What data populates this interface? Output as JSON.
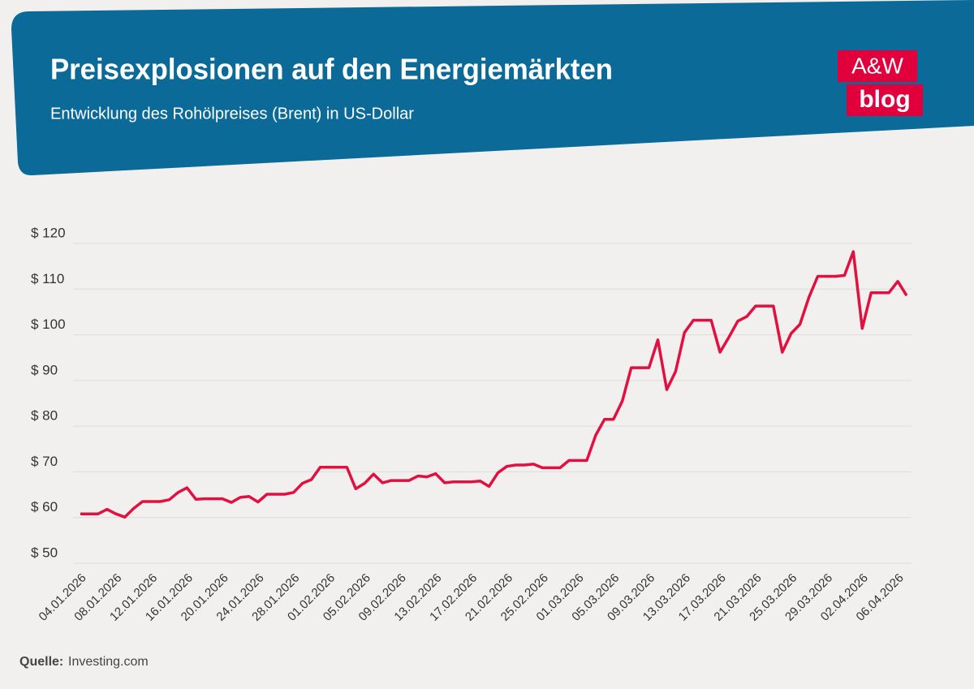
{
  "header": {
    "title": "Preisexplosionen auf den Energiemärkten",
    "subtitle": "Entwicklung des Rohölpreises (Brent) in US-Dollar",
    "logo_top": "A&W",
    "logo_bottom": "blog"
  },
  "source": {
    "label": "Quelle:",
    "text": "Investing.com"
  },
  "chart_data": {
    "type": "line",
    "color": "#e1103f",
    "grid": true,
    "categories": [
      "04.01.2026",
      null,
      null,
      null,
      "08.01.2026",
      null,
      null,
      null,
      "12.01.2026",
      null,
      null,
      null,
      "16.01.2026",
      null,
      null,
      null,
      "20.01.2026",
      null,
      null,
      null,
      "24.01.2026",
      null,
      null,
      null,
      "28.01.2026",
      null,
      null,
      null,
      "01.02.2026",
      null,
      null,
      null,
      "05.02.2026",
      null,
      null,
      null,
      "09.02.2026",
      null,
      null,
      null,
      "13.02.2026",
      null,
      null,
      null,
      "17.02.2026",
      null,
      null,
      null,
      "21.02.2026",
      null,
      null,
      null,
      "25.02.2026",
      null,
      null,
      null,
      "01.03.2026",
      null,
      null,
      null,
      "05.03.2026",
      null,
      null,
      null,
      "09.03.2026",
      null,
      null,
      null,
      "13.03.2026",
      null,
      null,
      null,
      "17.03.2026",
      null,
      null,
      null,
      "21.03.2026",
      null,
      null,
      null,
      "25.03.2026",
      null,
      null,
      null,
      "29.03.2026",
      null,
      null,
      null,
      "02.04.2026",
      null,
      null,
      null,
      "06.04.2026",
      null
    ],
    "values": [
      60.8,
      60.8,
      60.8,
      61.8,
      60.8,
      60.1,
      62,
      63.5,
      63.5,
      63.5,
      63.9,
      65.5,
      66.5,
      64,
      64.1,
      64.1,
      64.1,
      63.3,
      64.4,
      64.6,
      63.4,
      65.1,
      65.1,
      65.1,
      65.5,
      67.5,
      68.3,
      71,
      71,
      71,
      71,
      66.3,
      67.5,
      69.5,
      67.6,
      68.1,
      68.1,
      68.1,
      69.1,
      68.9,
      69.6,
      67.6,
      67.8,
      67.8,
      67.8,
      68,
      66.8,
      69.8,
      71.2,
      71.5,
      71.5,
      71.7,
      70.9,
      70.9,
      70.9,
      72.5,
      72.5,
      72.5,
      78,
      81.5,
      81.5,
      85.5,
      92.8,
      92.8,
      92.8,
      98.9,
      88,
      92,
      100.5,
      103.2,
      103.2,
      103.2,
      96.2,
      99.5,
      103,
      104,
      106.3,
      106.3,
      106.3,
      96.2,
      100.3,
      102.3,
      108.2,
      112.8,
      112.8,
      112.8,
      113,
      118.2,
      101.4,
      109.2,
      109.2,
      109.2,
      111.7,
      108.6
    ],
    "ylim": [
      50,
      120
    ],
    "yticks": [
      {
        "value": 50,
        "label": "$ 50"
      },
      {
        "value": 60,
        "label": "$ 60"
      },
      {
        "value": 70,
        "label": "$ 70"
      },
      {
        "value": 80,
        "label": "$ 80"
      },
      {
        "value": 90,
        "label": "$ 90"
      },
      {
        "value": 100,
        "label": "$ 100"
      },
      {
        "value": 110,
        "label": "$ 110"
      },
      {
        "value": 120,
        "label": "$ 120"
      }
    ]
  }
}
